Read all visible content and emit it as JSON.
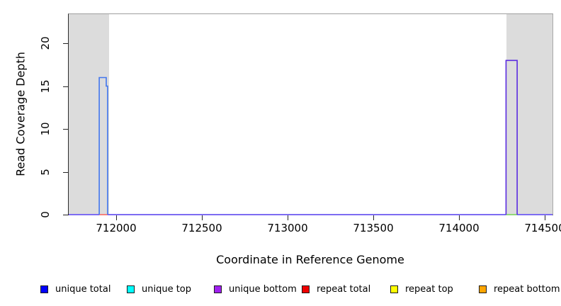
{
  "chart_data": {
    "type": "line",
    "title": "",
    "xlabel": "Coordinate in Reference Genome",
    "ylabel": "Read Coverage Depth",
    "xlim": [
      711723,
      714545
    ],
    "ylim": [
      0,
      23.4
    ],
    "x_ticks": [
      712000,
      712500,
      713000,
      713500,
      714000,
      714500
    ],
    "y_ticks": [
      0,
      5,
      10,
      15,
      20
    ],
    "grid": "off",
    "legend_position": "bottom",
    "axis_color": "#262626",
    "box_color": "#9e9e9e",
    "shaded_regions": [
      {
        "name": "left-end-shaded-region",
        "x0": 711723,
        "x1": 711958,
        "color": "#dcdcdc"
      },
      {
        "name": "right-end-shaded-region",
        "x0": 714277,
        "x1": 714545,
        "color": "#dcdcdc"
      }
    ],
    "series": [
      {
        "name": "zero-baseline-unique-bottom",
        "color": "#7d6cf2",
        "width": 2,
        "points": [
          [
            711723,
            0
          ],
          [
            714545,
            0
          ]
        ]
      },
      {
        "name": "repeat-total-baseline-segment",
        "color": "#f4837d",
        "width": 2,
        "points": [
          [
            711901,
            0
          ],
          [
            711950,
            0
          ]
        ]
      },
      {
        "name": "repeat-top-baseline-segment",
        "color": "#90d878",
        "width": 2,
        "points": [
          [
            714274,
            0
          ],
          [
            714339,
            0
          ]
        ]
      },
      {
        "name": "unique-coverage-left-peak",
        "color": "#4276ee",
        "width": 1.6,
        "points": [
          [
            711901,
            0
          ],
          [
            711901,
            16
          ],
          [
            711942,
            16
          ],
          [
            711942,
            15
          ],
          [
            711950,
            15
          ],
          [
            711950,
            0
          ]
        ]
      },
      {
        "name": "unique-coverage-right-peak",
        "color": "#5a2be0",
        "width": 1.6,
        "points": [
          [
            714274,
            0
          ],
          [
            714274,
            18
          ],
          [
            714339,
            18
          ],
          [
            714339,
            0
          ]
        ]
      }
    ],
    "legend": [
      {
        "label": "unique total",
        "color": "#0000ff"
      },
      {
        "label": "unique top",
        "color": "#00ffff"
      },
      {
        "label": "unique bottom",
        "color": "#a020f0"
      },
      {
        "label": "repeat total",
        "color": "#ee0000"
      },
      {
        "label": "repeat top",
        "color": "#ffff00"
      },
      {
        "label": "repeat bottom",
        "color": "#ffa500"
      }
    ]
  }
}
